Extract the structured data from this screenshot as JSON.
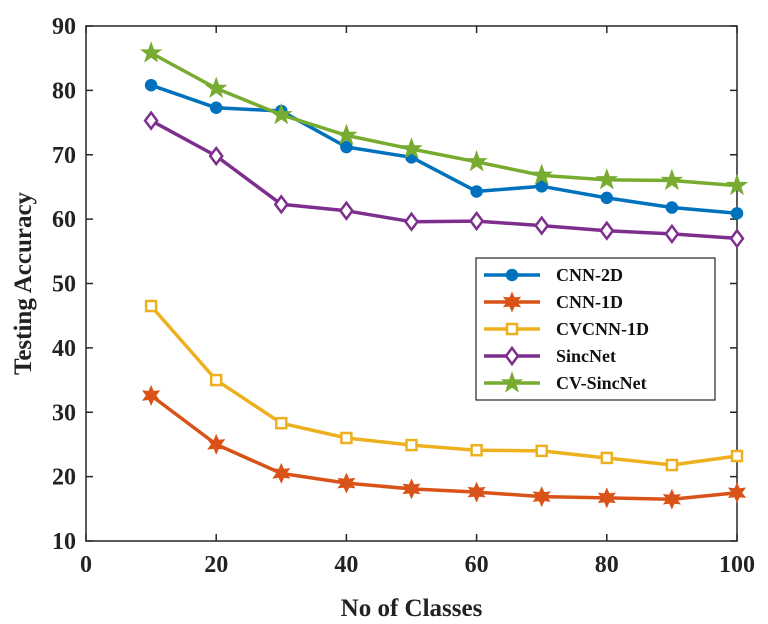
{
  "chart_data": {
    "type": "line",
    "xlabel": "No of Classes",
    "ylabel": "Testing Accuracy",
    "xlim": [
      0,
      100
    ],
    "ylim": [
      10,
      90
    ],
    "xticks": [
      0,
      20,
      40,
      60,
      80,
      100
    ],
    "yticks": [
      10,
      20,
      30,
      40,
      50,
      60,
      70,
      80,
      90
    ],
    "grid": false,
    "legend_position": "right",
    "x": [
      10,
      20,
      30,
      40,
      50,
      60,
      70,
      80,
      90,
      100
    ],
    "series": [
      {
        "name": "CNN-2D",
        "color": "#0072BD",
        "marker": "circle",
        "values": [
          80.8,
          77.3,
          76.8,
          71.2,
          69.6,
          64.3,
          65.1,
          63.3,
          61.8,
          60.9
        ]
      },
      {
        "name": "CNN-1D",
        "color": "#D95319",
        "marker": "hexagram",
        "values": [
          32.6,
          25.0,
          20.5,
          19.0,
          18.1,
          17.6,
          16.9,
          16.7,
          16.5,
          17.5
        ]
      },
      {
        "name": "CVCNN-1D",
        "color": "#EDB120",
        "marker": "square",
        "values": [
          46.5,
          35.0,
          28.3,
          26.0,
          24.9,
          24.1,
          24.0,
          22.9,
          21.8,
          23.2
        ]
      },
      {
        "name": "SincNet",
        "color": "#7E2F8E",
        "marker": "diamond",
        "values": [
          75.3,
          69.8,
          62.3,
          61.3,
          59.6,
          59.7,
          59.0,
          58.2,
          57.7,
          57.0
        ]
      },
      {
        "name": "CV-SincNet",
        "color": "#77AC30",
        "marker": "pentagram",
        "values": [
          85.8,
          80.3,
          76.2,
          73.0,
          70.9,
          68.9,
          66.8,
          66.1,
          66.0,
          65.2
        ]
      }
    ]
  }
}
